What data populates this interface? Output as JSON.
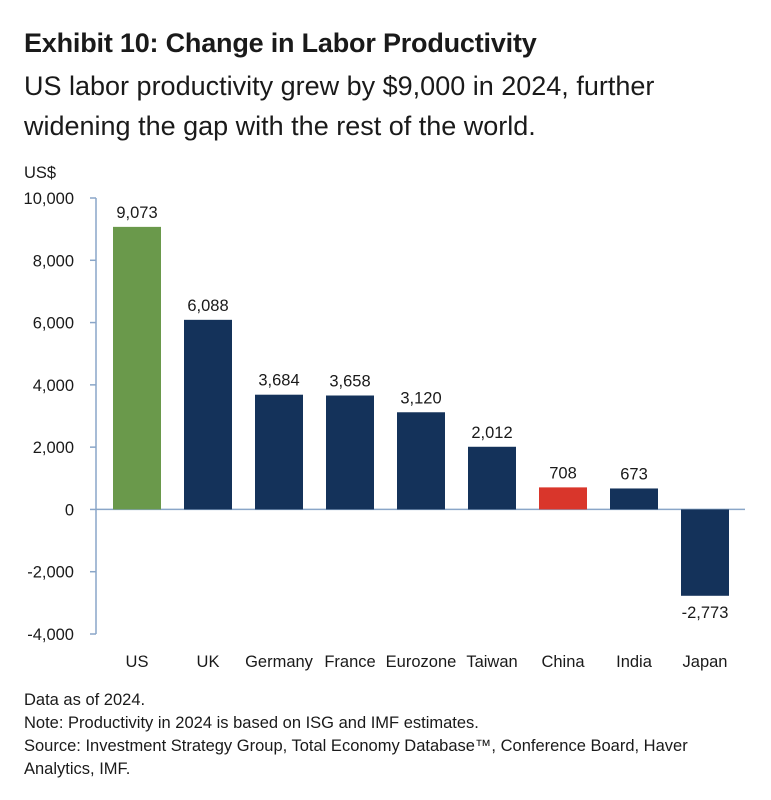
{
  "title": "Exhibit 10: Change in Labor Productivity",
  "subtitle": "US labor productivity grew by $9,000 in 2024, further widening the gap with the rest of the world.",
  "notes": [
    "Data as of 2024.",
    "Note: Productivity in 2024 is based on ISG and IMF estimates.",
    "Source: Investment Strategy Group, Total Economy Database™, Conference Board, Haver Analytics, IMF."
  ],
  "colors": {
    "us": "#6a994b",
    "default": "#14325a",
    "china": "#d9362b",
    "axis": "#8aa6c8"
  },
  "chart_data": {
    "type": "bar",
    "ylabel": "US$",
    "ylim": [
      -4000,
      10000
    ],
    "yticks": [
      -4000,
      -2000,
      0,
      2000,
      4000,
      6000,
      8000,
      10000
    ],
    "ytick_labels": [
      "-4,000",
      "-2,000",
      "0",
      "2,000",
      "4,000",
      "6,000",
      "8,000",
      "10,000"
    ],
    "categories": [
      "US",
      "UK",
      "Germany",
      "France",
      "Eurozone",
      "Taiwan",
      "China",
      "India",
      "Japan"
    ],
    "values": [
      9073,
      6088,
      3684,
      3658,
      3120,
      2012,
      708,
      673,
      -2773
    ],
    "value_labels": [
      "9,073",
      "6,088",
      "3,684",
      "3,658",
      "3,120",
      "2,012",
      "708",
      "673",
      "-2,773"
    ],
    "bar_colors": [
      "#6a994b",
      "#14325a",
      "#14325a",
      "#14325a",
      "#14325a",
      "#14325a",
      "#d9362b",
      "#14325a",
      "#14325a"
    ],
    "grid": false,
    "legend": "none"
  }
}
